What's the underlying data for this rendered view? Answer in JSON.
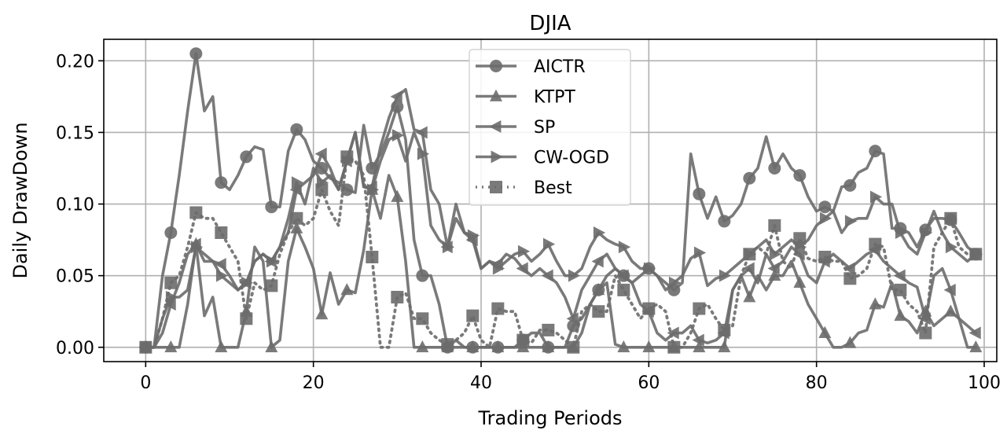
{
  "chart_data": {
    "type": "line",
    "title": "DJIA",
    "xlabel": "Trading Periods",
    "ylabel": "Daily DrawDown",
    "xlim": [
      -5,
      101.5
    ],
    "ylim": [
      -0.01,
      0.215
    ],
    "xticks": [
      0,
      20,
      40,
      60,
      80,
      100
    ],
    "xtick_labels": [
      "0",
      "20",
      "40",
      "60",
      "80",
      "100"
    ],
    "yticks": [
      0.0,
      0.05,
      0.1,
      0.15,
      0.2
    ],
    "ytick_labels": [
      "0.00",
      "0.05",
      "0.10",
      "0.15",
      "0.20"
    ],
    "grid": true,
    "legend_position": "top-center",
    "line_color": "#6b6b6b",
    "marker_every": 3,
    "series": [
      {
        "name": "AICTR",
        "marker": "circle",
        "linestyle": "solid",
        "values": [
          0,
          0,
          0.05,
          0.08,
          0.12,
          0.165,
          0.205,
          0.165,
          0.175,
          0.115,
          0.11,
          0.12,
          0.133,
          0.14,
          0.138,
          0.098,
          0.098,
          0.137,
          0.152,
          0.145,
          0.13,
          0.125,
          0.118,
          0.115,
          0.11,
          0.108,
          0.155,
          0.125,
          0.135,
          0.15,
          0.168,
          0.145,
          0.075,
          0.05,
          0.05,
          0.03,
          0,
          0,
          0,
          0,
          0,
          0,
          0,
          0,
          0,
          0.005,
          0.01,
          0.01,
          0,
          0,
          0,
          0.015,
          0.02,
          0.03,
          0.04,
          0.05,
          0.055,
          0.05,
          0.045,
          0.05,
          0.055,
          0.05,
          0.045,
          0.04,
          0.045,
          0.135,
          0.107,
          0.09,
          0.105,
          0.088,
          0.092,
          0.1,
          0.118,
          0.125,
          0.147,
          0.125,
          0.135,
          0.125,
          0.12,
          0.105,
          0.095,
          0.098,
          0.095,
          0.112,
          0.113,
          0.122,
          0.125,
          0.137,
          0.135,
          0.083,
          0.083,
          0.08,
          0.07,
          0.082,
          0.09,
          0.09,
          0.089,
          0.08,
          0.07,
          0.065
        ]
      },
      {
        "name": "KTPT",
        "marker": "triangle-up",
        "linestyle": "solid",
        "values": [
          0,
          0,
          0,
          0,
          0,
          0.03,
          0.072,
          0.022,
          0.035,
          0,
          0,
          0,
          0.025,
          0.07,
          0.06,
          0,
          0.005,
          0.06,
          0.083,
          0.07,
          0.055,
          0.023,
          0.052,
          0.03,
          0.04,
          0.038,
          0.068,
          0.11,
          0.09,
          0.12,
          0.105,
          0.06,
          0,
          0,
          0,
          0,
          0,
          0.005,
          0,
          0,
          0,
          0,
          0,
          0,
          0,
          0,
          0,
          0,
          0,
          0,
          0,
          0,
          0.01,
          0.03,
          0.04,
          0.045,
          0.002,
          0,
          0,
          0,
          0,
          0,
          0,
          0,
          0,
          0,
          0,
          0,
          0,
          0,
          0.04,
          0.05,
          0.035,
          0.05,
          0.04,
          0.05,
          0.05,
          0.06,
          0.045,
          0.03,
          0.02,
          0.01,
          0,
          0,
          0.003,
          0.01,
          0.012,
          0.03,
          0.028,
          0.045,
          0.022,
          0.018,
          0.01,
          0.025,
          0.015,
          0.02,
          0.025,
          0.02,
          0,
          0
        ]
      },
      {
        "name": "SP",
        "marker": "triangle-left",
        "linestyle": "solid",
        "values": [
          0,
          0,
          0.01,
          0.03,
          0.045,
          0.065,
          0.072,
          0.06,
          0.06,
          0.058,
          0.05,
          0.04,
          0.045,
          0.06,
          0.065,
          0.06,
          0.07,
          0.08,
          0.11,
          0.115,
          0.12,
          0.135,
          0.125,
          0.11,
          0.13,
          0.15,
          0.112,
          0.112,
          0.14,
          0.16,
          0.175,
          0.18,
          0.152,
          0.15,
          0.11,
          0.1,
          0.07,
          0.1,
          0.08,
          0.075,
          0.055,
          0.06,
          0.058,
          0.065,
          0.062,
          0.055,
          0.05,
          0.055,
          0.05,
          0.045,
          0.035,
          0.02,
          0.04,
          0.05,
          0.06,
          0.065,
          0.055,
          0.05,
          0.045,
          0.03,
          0.025,
          0.01,
          0.005,
          0.01,
          0.01,
          0.015,
          0.005,
          0.003,
          0.005,
          0.01,
          0.04,
          0.05,
          0.055,
          0.045,
          0.065,
          0.055,
          0.06,
          0.07,
          0.065,
          0.05,
          0.045,
          0.06,
          0.065,
          0.06,
          0.055,
          0.06,
          0.065,
          0.068,
          0.06,
          0.055,
          0.05,
          0.045,
          0.042,
          0.02,
          0.05,
          0.055,
          0.04,
          0.02,
          0.015,
          0.01
        ]
      },
      {
        "name": "CW-OGD",
        "marker": "triangle-right",
        "linestyle": "solid",
        "values": [
          0,
          0,
          0.02,
          0.035,
          0.035,
          0.04,
          0.07,
          0.065,
          0.06,
          0.05,
          0.045,
          0.04,
          0.045,
          0.06,
          0.065,
          0.06,
          0.07,
          0.09,
          0.115,
          0.1,
          0.125,
          0.115,
          0.12,
          0.11,
          0.13,
          0.15,
          0.112,
          0.11,
          0.13,
          0.145,
          0.148,
          0.13,
          0.15,
          0.135,
          0.085,
          0.075,
          0.07,
          0.09,
          0.08,
          0.078,
          0.055,
          0.06,
          0.055,
          0.06,
          0.065,
          0.067,
          0.06,
          0.065,
          0.072,
          0.06,
          0.05,
          0.05,
          0.055,
          0.07,
          0.08,
          0.075,
          0.072,
          0.07,
          0.06,
          0.055,
          0.055,
          0.05,
          0.04,
          0.045,
          0.05,
          0.062,
          0.066,
          0.043,
          0.048,
          0.05,
          0.055,
          0.06,
          0.065,
          0.07,
          0.075,
          0.065,
          0.07,
          0.075,
          0.07,
          0.075,
          0.085,
          0.09,
          0.095,
          0.08,
          0.088,
          0.09,
          0.09,
          0.105,
          0.1,
          0.1,
          0.08,
          0.07,
          0.065,
          0.08,
          0.095,
          0.08,
          0.07,
          0.065,
          0.06,
          0.065
        ]
      },
      {
        "name": "Best",
        "marker": "square",
        "linestyle": "dotted",
        "values": [
          0,
          0,
          0.02,
          0.045,
          0.05,
          0.07,
          0.094,
          0.09,
          0.09,
          0.08,
          0.07,
          0.06,
          0.02,
          0.045,
          0.04,
          0.043,
          0.065,
          0.08,
          0.09,
          0.085,
          0.09,
          0.11,
          0.095,
          0.085,
          0.133,
          0.13,
          0.12,
          0.063,
          0,
          0,
          0.035,
          0.038,
          0.02,
          0.02,
          0.01,
          0.005,
          0.002,
          0.005,
          0.01,
          0.022,
          0.005,
          0,
          0.027,
          0.025,
          0.025,
          0.005,
          0.003,
          0.012,
          0.012,
          0.01,
          0.005,
          0,
          0.025,
          0.03,
          0.025,
          0.025,
          0.05,
          0.04,
          0.03,
          0.02,
          0.027,
          0.03,
          0.025,
          0,
          0,
          0.01,
          0.027,
          0.03,
          0.02,
          0.012,
          0.015,
          0.05,
          0.065,
          0.07,
          0.065,
          0.085,
          0.06,
          0.055,
          0.076,
          0.062,
          0.06,
          0.063,
          0.06,
          0.06,
          0.048,
          0.05,
          0.055,
          0.072,
          0.07,
          0.04,
          0.04,
          0.03,
          0.025,
          0.01,
          0.07,
          0.08,
          0.09,
          0.07,
          0.065,
          0.065
        ]
      }
    ]
  }
}
